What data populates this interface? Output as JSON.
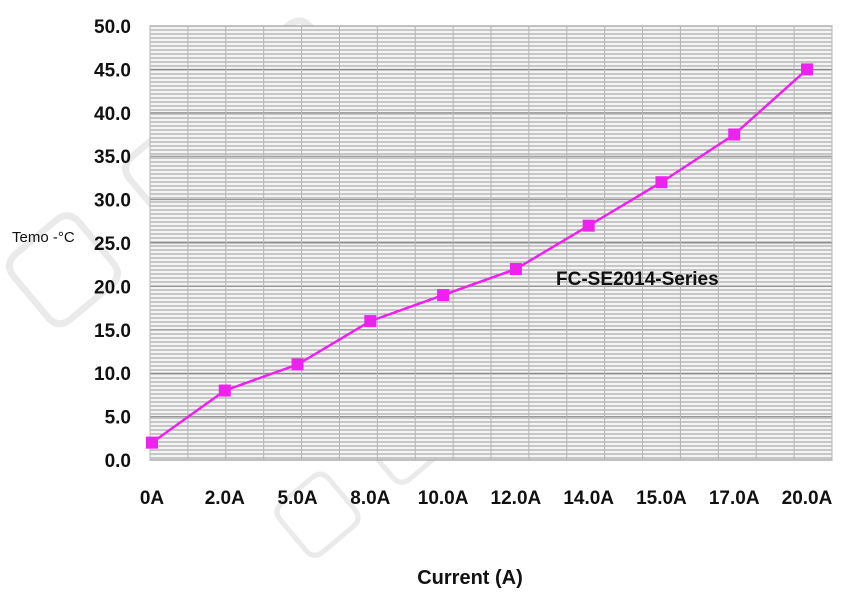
{
  "chart_data": {
    "type": "line",
    "title": "",
    "xlabel": "Current (A)",
    "ylabel": "Temo -°C",
    "categories": [
      "0A",
      "2.0A",
      "5.0A",
      "8.0A",
      "10.0A",
      "12.0A",
      "14.0A",
      "15.0A",
      "17.0A",
      "20.0A"
    ],
    "yticks": [
      "0.0",
      "5.0",
      "10.0",
      "15.0",
      "20.0",
      "25.0",
      "30.0",
      "35.0",
      "40.0",
      "45.0",
      "50.0"
    ],
    "ylim": [
      0,
      50
    ],
    "series": [
      {
        "name": "FC-SE2014-Series",
        "values": [
          2.0,
          8.0,
          11.0,
          16.0,
          19.0,
          22.0,
          27.0,
          32.0,
          37.5,
          45.0
        ]
      }
    ],
    "annotation": "FC-SE2014-Series",
    "grid": true,
    "colors": {
      "line": "#ee22ee",
      "marker": "#ee22ee",
      "grid": "#888888"
    }
  }
}
